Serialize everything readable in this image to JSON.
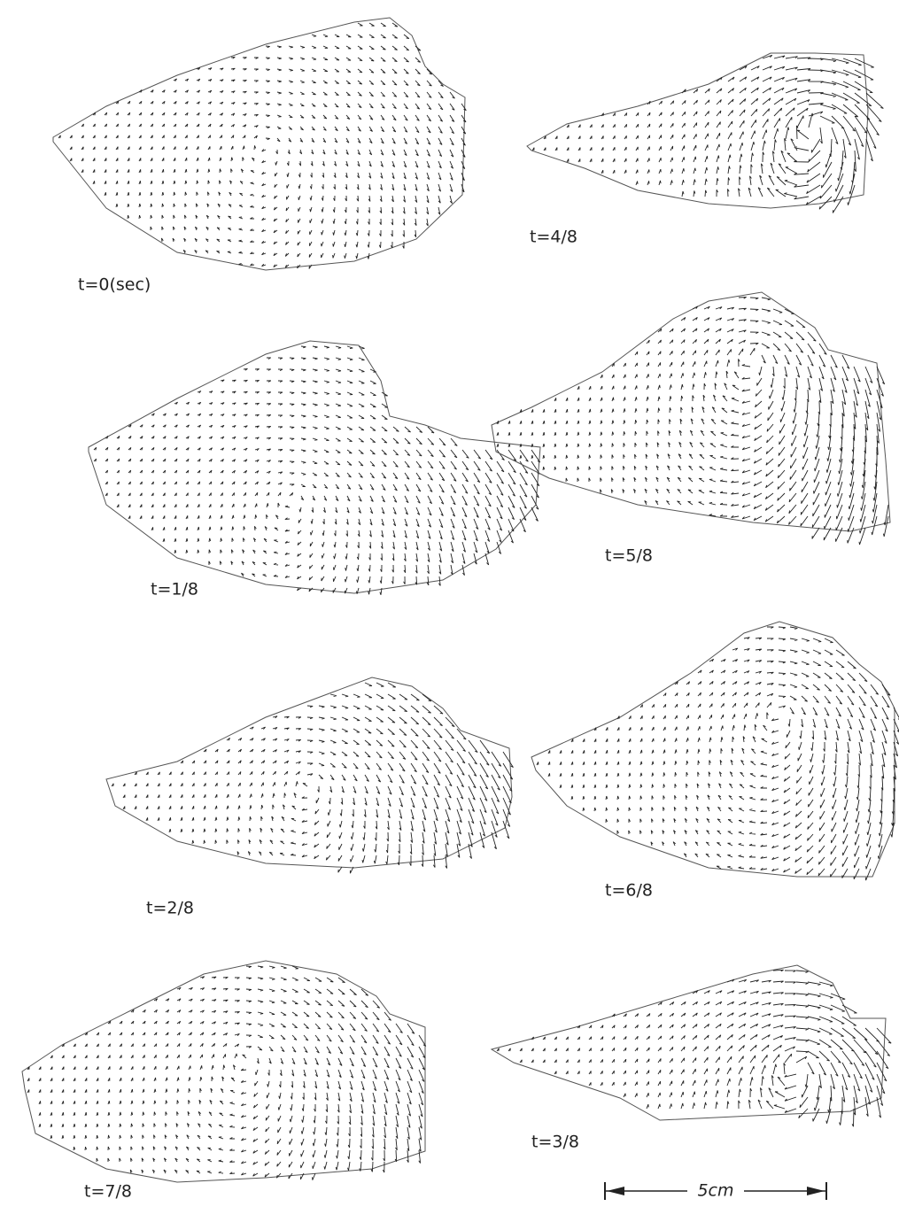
{
  "panels": [
    {
      "label": "t=0(sec)"
    },
    {
      "label": "t=4/8"
    },
    {
      "label": "t=1/8"
    },
    {
      "label": "t=5/8"
    },
    {
      "label": "t=2/8"
    },
    {
      "label": "t=6/8"
    },
    {
      "label": "t=7/8"
    },
    {
      "label": "t=3/8"
    }
  ],
  "scale_bar": {
    "label": "5cm"
  }
}
